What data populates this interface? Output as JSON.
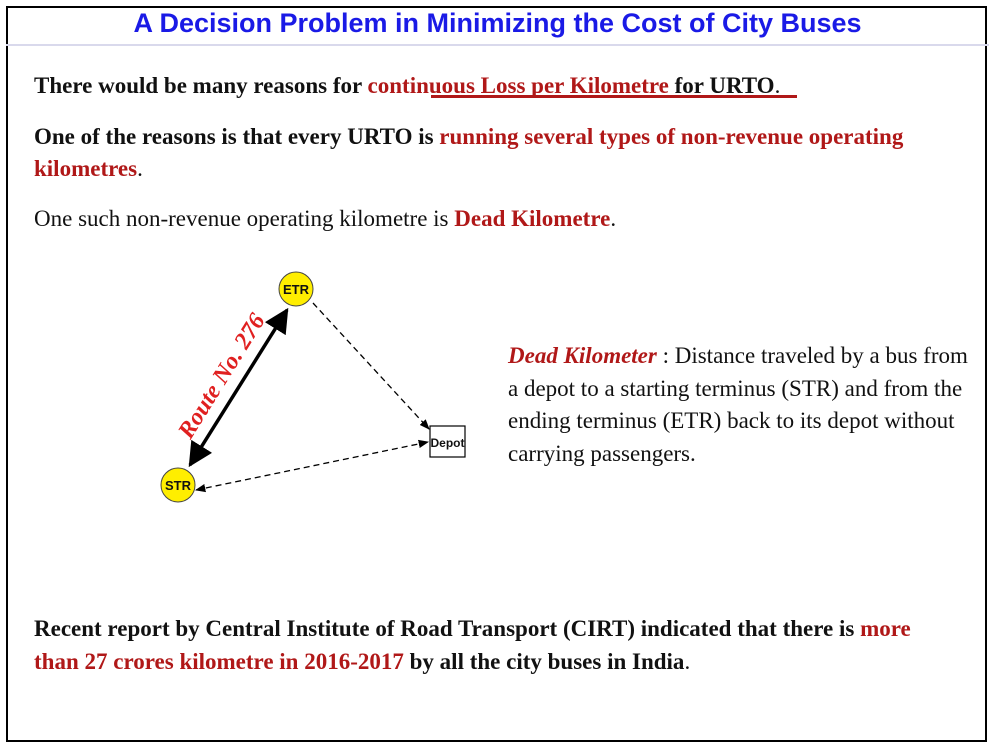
{
  "title": "A Decision Problem in Minimizing the Cost of City Buses",
  "para1": {
    "before": "There would be many reasons for ",
    "highlight": "continuous Loss per Kilometre ",
    "after": "for URTO",
    "end": "."
  },
  "para2": {
    "before": "One of the reasons is that every URTO is ",
    "highlight": "running several types of non-revenue operating kilometres",
    "end": "."
  },
  "para3": {
    "before": "One such non-revenue operating kilometre is ",
    "highlight": "Dead Kilometre",
    "end": "."
  },
  "diagram": {
    "nodes": {
      "etr": "ETR",
      "str": "STR",
      "depot": "Depot"
    },
    "route_label": "Route No. 276",
    "colors": {
      "node_fill": "#ffee00",
      "route": "#e02020"
    }
  },
  "definition": {
    "term": "Dead Kilometer",
    "separator": " : ",
    "text": "Distance traveled by a bus from a depot to a starting terminus (STR) and from the ending terminus (ETR) back to its depot without carrying passengers."
  },
  "para4": {
    "before": "Recent report by Central Institute of Road Transport (CIRT) indicated that there is ",
    "highlight": "more than 27 crores kilometre in 2016-2017",
    "after": " by all the city buses in India",
    "end": "."
  }
}
